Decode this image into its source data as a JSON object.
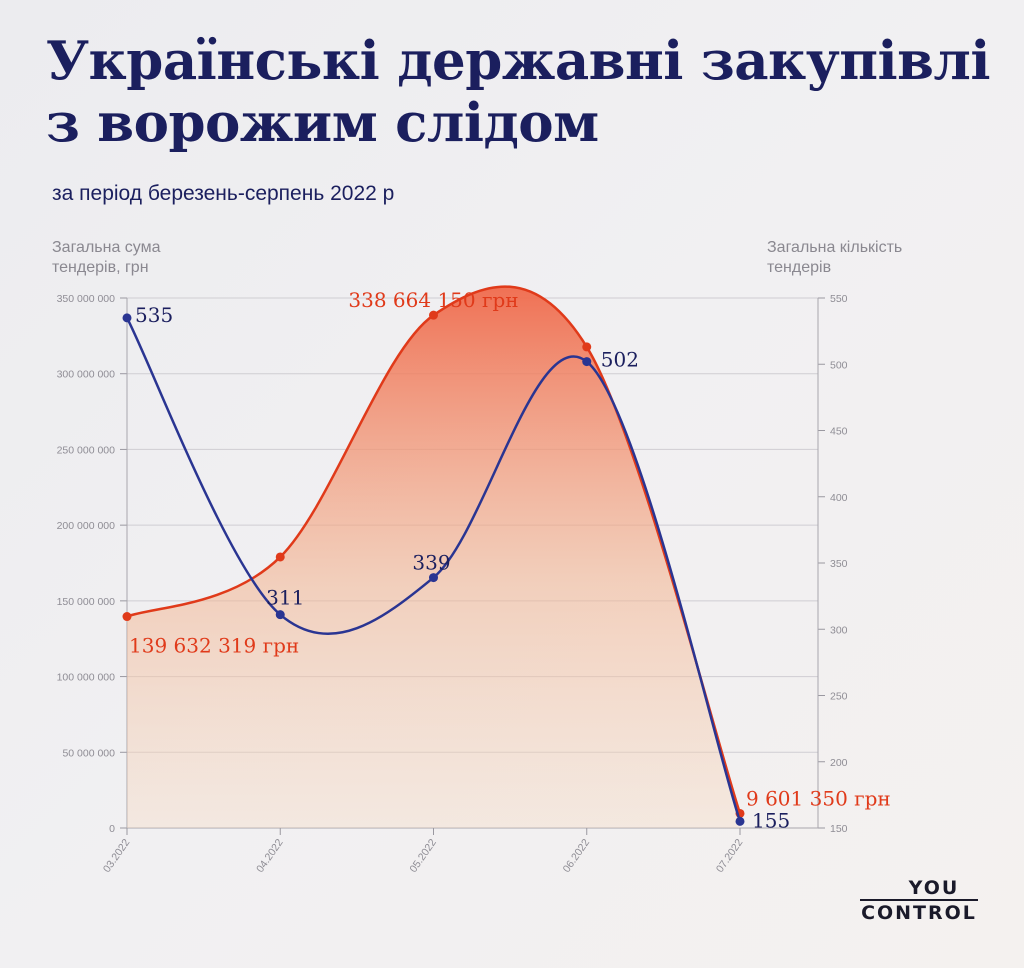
{
  "chart_data": {
    "type": "line",
    "title": "Українські державні закупівлі з ворожим слідом",
    "subtitle": "за період березень-серпень 2022 р",
    "ylabel_left": "Загальна сума тендерів, грн",
    "ylabel_right": "Загальна кількість тендерів",
    "categories": [
      "03.2022",
      "04.2022",
      "05.2022",
      "06.2022",
      "07.2022"
    ],
    "ylim_left": [
      0,
      350000000
    ],
    "ylim_right": [
      150,
      550
    ],
    "left_ticks": [
      "0",
      "50 000 000",
      "100 000 000",
      "150 000 000",
      "200 000 000",
      "250 000 000",
      "300 000 000",
      "350 000 000"
    ],
    "right_ticks": [
      "150",
      "200",
      "250",
      "300",
      "350",
      "400",
      "450",
      "500",
      "550"
    ],
    "grid": true,
    "series": [
      {
        "axis": "left",
        "type": "area",
        "color": "#e03a1a",
        "values": [
          139632319,
          179000000,
          338664150,
          317700000,
          9601350
        ],
        "labels": [
          "139 632 319 грн",
          "",
          "338 664 150 грн",
          "",
          "9 601 350 грн"
        ]
      },
      {
        "axis": "right",
        "type": "line",
        "color": "#2a3592",
        "values": [
          535,
          311,
          339,
          502,
          155
        ],
        "labels": [
          "535",
          "311",
          "339",
          "502",
          "155"
        ]
      }
    ]
  },
  "logo": {
    "top": "YOU",
    "bottom": "CONTROL"
  }
}
